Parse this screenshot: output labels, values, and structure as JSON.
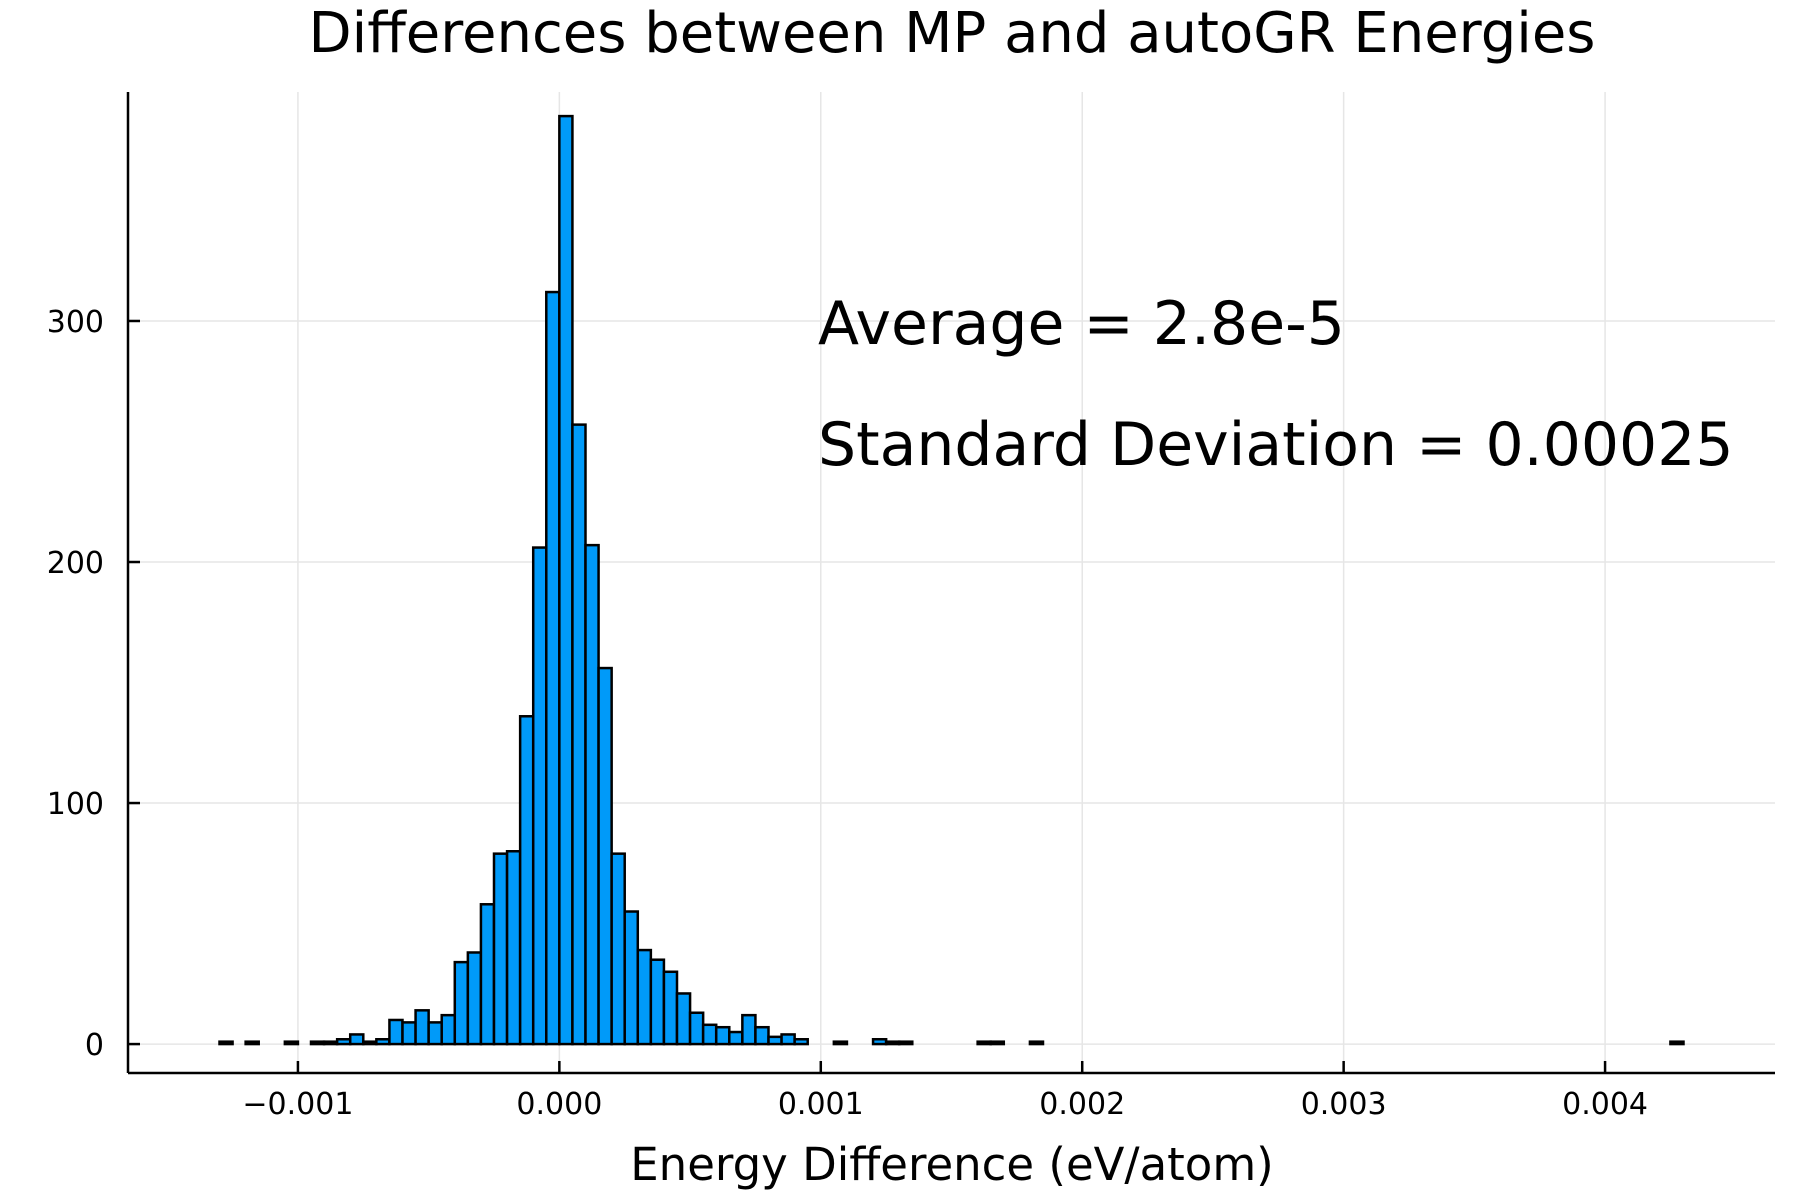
{
  "chart_data": {
    "type": "bar",
    "title": "Differences between MP and autoGR Energies",
    "xlabel": "Energy Difference (eV/atom)",
    "ylabel": "",
    "xlim": [
      -0.00165,
      0.00465
    ],
    "ylim": [
      -12,
      395
    ],
    "bin_width": 5e-05,
    "xticks": [
      -0.001,
      0.0,
      0.001,
      0.002,
      0.003,
      0.004
    ],
    "xtick_labels": [
      "−0.001",
      "0.000",
      "0.001",
      "0.002",
      "0.003",
      "0.004"
    ],
    "yticks": [
      0,
      100,
      200,
      300
    ],
    "ytick_labels": [
      "0",
      "100",
      "200",
      "300"
    ],
    "grid": true,
    "colors": {
      "bar": "#009af9",
      "edge": "#000000"
    },
    "annotations": [
      "Average = 2.8e-5",
      "Standard Deviation = 0.00025"
    ],
    "bin_starts": [
      -0.0013,
      -0.00125,
      -0.0012,
      -0.00115,
      -0.0011,
      -0.00105,
      -0.001,
      -0.00095,
      -0.0009,
      -0.00085,
      -0.0008,
      -0.00075,
      -0.0007,
      -0.00065,
      -0.0006,
      -0.00055,
      -0.0005,
      -0.00045,
      -0.0004,
      -0.00035,
      -0.0003,
      -0.00025,
      -0.0002,
      -0.00015,
      -0.0001,
      -5e-05,
      0.0,
      5e-05,
      0.0001,
      0.00015,
      0.0002,
      0.00025,
      0.0003,
      0.00035,
      0.0004,
      0.00045,
      0.0005,
      0.00055,
      0.0006,
      0.00065,
      0.0007,
      0.00075,
      0.0008,
      0.00085,
      0.0009,
      0.00095,
      0.001,
      0.00105,
      0.0011,
      0.00115,
      0.0012,
      0.00125,
      0.0013,
      0.00135,
      0.0014,
      0.00145,
      0.0015,
      0.00155,
      0.0016,
      0.00165,
      0.0017,
      0.00175,
      0.0018,
      0.00185,
      0.0019,
      0.00195,
      0.002,
      0.00205,
      0.0021,
      0.00215,
      0.0022,
      0.00225,
      0.0023,
      0.00235,
      0.0024,
      0.00245,
      0.0025,
      0.00255,
      0.0026,
      0.00265,
      0.0027,
      0.00275,
      0.0028,
      0.00285,
      0.0029,
      0.00295,
      0.003,
      0.00305,
      0.0031,
      0.00315,
      0.0032,
      0.00325,
      0.0033,
      0.00335,
      0.0034,
      0.00345,
      0.0035,
      0.00355,
      0.0036,
      0.00365,
      0.0037,
      0.00375,
      0.0038,
      0.00385,
      0.0039,
      0.00395,
      0.004,
      0.00405,
      0.0041,
      0.00415,
      0.0042,
      0.00425
    ],
    "values": [
      1,
      0,
      1,
      0,
      0,
      1,
      0,
      1,
      1,
      2,
      4,
      1,
      2,
      10,
      9,
      14,
      9,
      12,
      34,
      38,
      58,
      79,
      80,
      136,
      206,
      312,
      385,
      257,
      207,
      156,
      79,
      55,
      39,
      35,
      30,
      21,
      13,
      8,
      7,
      5,
      12,
      7,
      3,
      4,
      2,
      0,
      0,
      1,
      0,
      0,
      2,
      1,
      1,
      0,
      0,
      0,
      0,
      0,
      1,
      1,
      0,
      0,
      1,
      0,
      0,
      0,
      0,
      0,
      0,
      0,
      0,
      0,
      0,
      0,
      0,
      0,
      0,
      0,
      0,
      0,
      0,
      0,
      0,
      0,
      0,
      0,
      0,
      0,
      0,
      0,
      0,
      0,
      0,
      0,
      0,
      0,
      0,
      0,
      0,
      0,
      0,
      0,
      0,
      0,
      0,
      0,
      0,
      0,
      0,
      0,
      0,
      1
    ]
  }
}
